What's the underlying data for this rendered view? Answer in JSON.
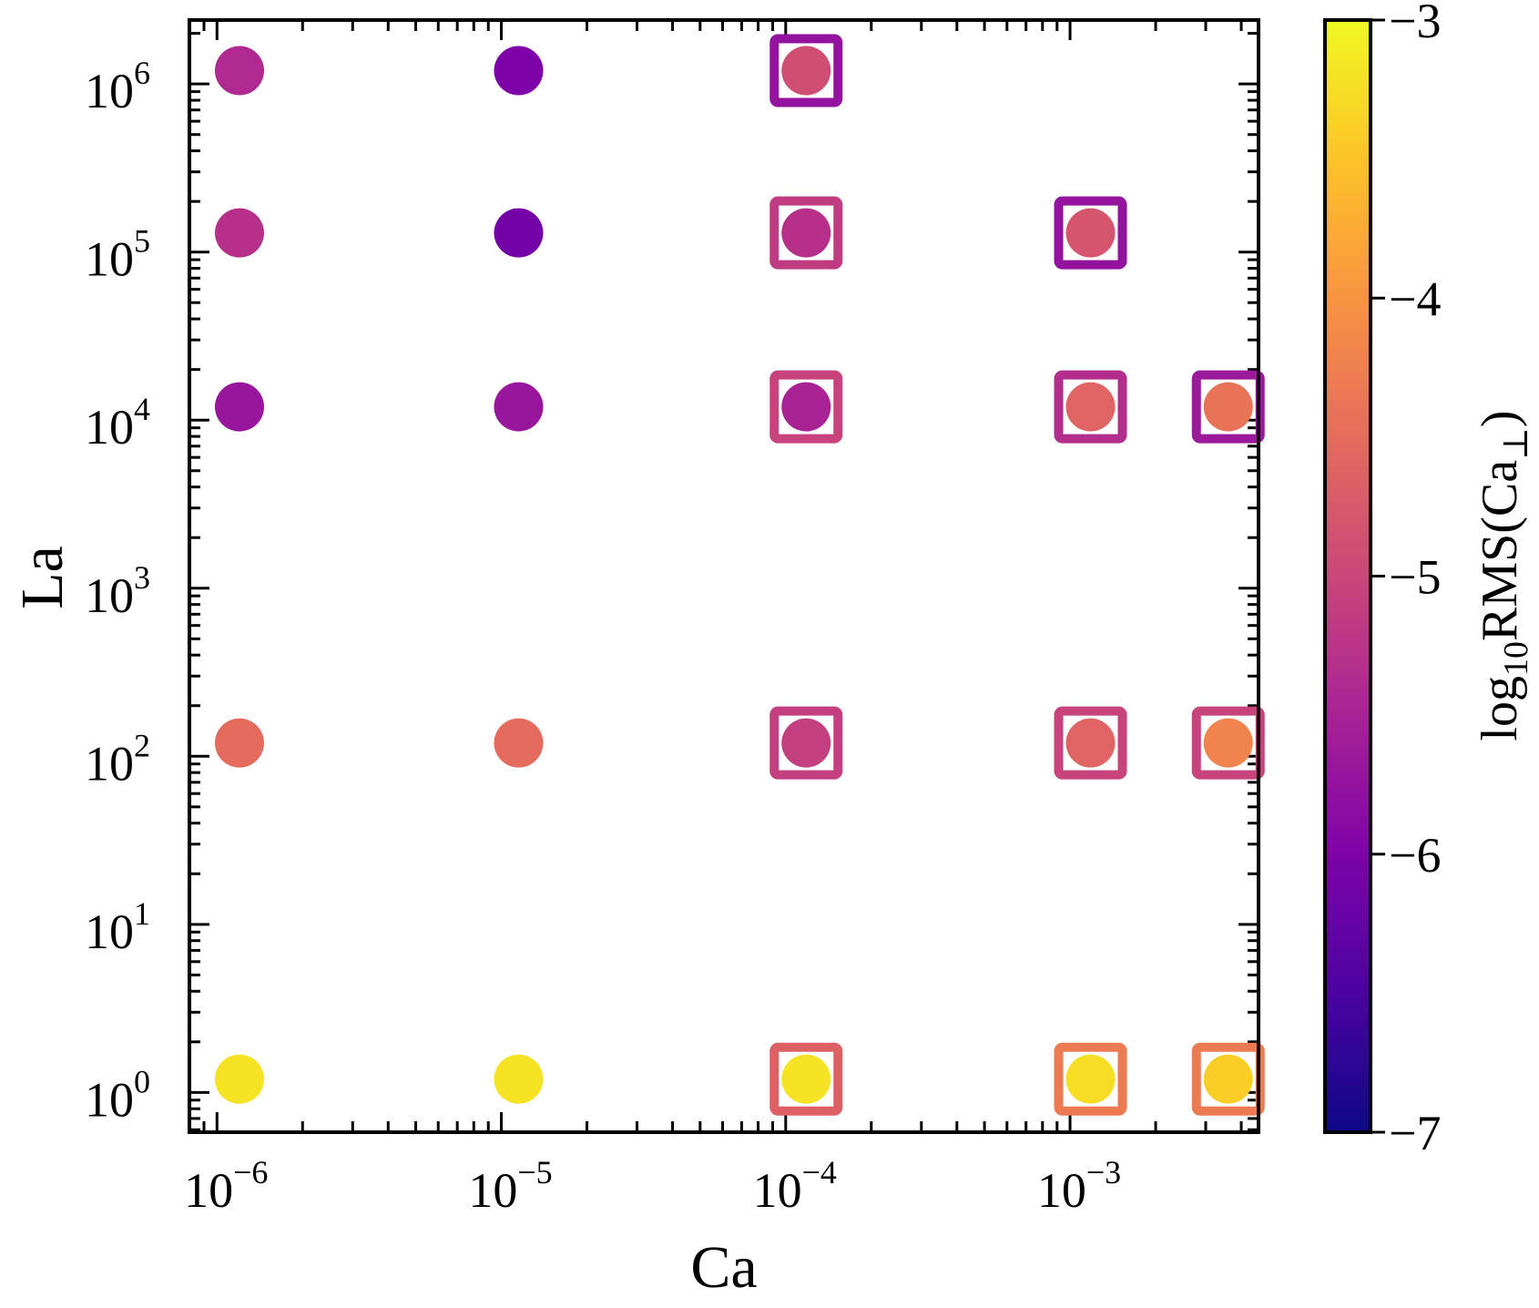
{
  "chart_data": {
    "type": "scatter",
    "xlabel": "Ca",
    "ylabel": "La",
    "xscale": "log",
    "yscale": "log",
    "xlim": [
      8e-07,
      0.0046
    ],
    "ylim": [
      0.58,
      2400000
    ],
    "x_tick_labels": [
      {
        "value": 1e-06,
        "base": "10",
        "exp": "−6"
      },
      {
        "value": 1e-05,
        "base": "10",
        "exp": "−5"
      },
      {
        "value": 0.0001,
        "base": "10",
        "exp": "−4"
      },
      {
        "value": 0.001,
        "base": "10",
        "exp": "−3"
      }
    ],
    "y_tick_labels": [
      {
        "value": 1,
        "base": "10",
        "exp": "0"
      },
      {
        "value": 10,
        "base": "10",
        "exp": "1"
      },
      {
        "value": 100,
        "base": "10",
        "exp": "2"
      },
      {
        "value": 1000,
        "base": "10",
        "exp": "3"
      },
      {
        "value": 10000,
        "base": "10",
        "exp": "4"
      },
      {
        "value": 100000,
        "base": "10",
        "exp": "5"
      },
      {
        "value": 1000000,
        "base": "10",
        "exp": "6"
      }
    ],
    "colorbar": {
      "colormap": "plasma",
      "range": [
        -7,
        -3
      ],
      "ticks": [
        {
          "value": -3,
          "label": "−3"
        },
        {
          "value": -4,
          "label": "−4"
        },
        {
          "value": -5,
          "label": "−5"
        },
        {
          "value": -6,
          "label": "−6"
        },
        {
          "value": -7,
          "label": "−7"
        }
      ],
      "label_prefix": "log",
      "label_sub": "10",
      "label_main": "RMS(Ca",
      "label_perp": "⊥",
      "label_close": ")"
    },
    "series": [
      {
        "name": "circles",
        "marker": "circle",
        "points": [
          {
            "ca": 1.2e-06,
            "la": 1200000.0,
            "c": -5.4
          },
          {
            "ca": 1.2e-06,
            "la": 130000.0,
            "c": -5.3
          },
          {
            "ca": 1.2e-06,
            "la": 12000.0,
            "c": -5.7
          },
          {
            "ca": 1.2e-06,
            "la": 120,
            "c": -4.5
          },
          {
            "ca": 1.2e-06,
            "la": 1.2,
            "c": -3.2
          },
          {
            "ca": 1.15e-05,
            "la": 1200000.0,
            "c": -6.0
          },
          {
            "ca": 1.15e-05,
            "la": 130000.0,
            "c": -6.1
          },
          {
            "ca": 1.15e-05,
            "la": 12000.0,
            "c": -5.7
          },
          {
            "ca": 1.15e-05,
            "la": 120,
            "c": -4.5
          },
          {
            "ca": 1.15e-05,
            "la": 1.2,
            "c": -3.2
          },
          {
            "ca": 0.000118,
            "la": 1200000.0,
            "c": -4.9
          },
          {
            "ca": 0.000118,
            "la": 130000.0,
            "c": -5.3
          },
          {
            "ca": 0.000118,
            "la": 12000.0,
            "c": -5.5
          },
          {
            "ca": 0.000118,
            "la": 120,
            "c": -5.1
          },
          {
            "ca": 0.000118,
            "la": 1.2,
            "c": -3.2
          },
          {
            "ca": 0.00118,
            "la": 130000.0,
            "c": -4.8
          },
          {
            "ca": 0.00118,
            "la": 12000.0,
            "c": -4.6
          },
          {
            "ca": 0.00118,
            "la": 120,
            "c": -4.6
          },
          {
            "ca": 0.00118,
            "la": 1.2,
            "c": -3.25
          },
          {
            "ca": 0.0036,
            "la": 12000.0,
            "c": -4.4
          },
          {
            "ca": 0.0036,
            "la": 120,
            "c": -4.2
          },
          {
            "ca": 0.0036,
            "la": 1.2,
            "c": -3.4
          }
        ]
      },
      {
        "name": "squares",
        "marker": "square",
        "points": [
          {
            "ca": 0.000118,
            "la": 1200000.0,
            "c": -5.75
          },
          {
            "ca": 0.000118,
            "la": 130000.0,
            "c": -5.15
          },
          {
            "ca": 0.000118,
            "la": 12000.0,
            "c": -5.05
          },
          {
            "ca": 0.000118,
            "la": 120,
            "c": -5.1
          },
          {
            "ca": 0.000118,
            "la": 1.2,
            "c": -4.65
          },
          {
            "ca": 0.00118,
            "la": 130000.0,
            "c": -5.75
          },
          {
            "ca": 0.00118,
            "la": 12000.0,
            "c": -5.35
          },
          {
            "ca": 0.00118,
            "la": 120,
            "c": -5.05
          },
          {
            "ca": 0.00118,
            "la": 1.2,
            "c": -4.3
          },
          {
            "ca": 0.0036,
            "la": 12000.0,
            "c": -5.65
          },
          {
            "ca": 0.0036,
            "la": 120,
            "c": -5.05
          },
          {
            "ca": 0.0036,
            "la": 1.2,
            "c": -4.3
          }
        ]
      }
    ]
  }
}
